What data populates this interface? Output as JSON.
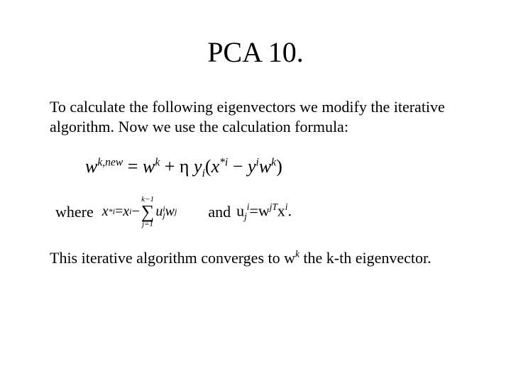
{
  "title": "PCA 10.",
  "intro": "To calculate the following eigenvectors we modify the iterative algorithm. Now we use the calculation formula:",
  "where_label": "where",
  "and_label": "and",
  "conclusion_pre": "This iterative algorithm converges to w",
  "conclusion_sup": "k",
  "conclusion_post": " the k-th eigenvector.",
  "eq_u_lhs_base": "u",
  "eq_u_lhs_sub": "j",
  "eq_u_lhs_sup": "i",
  "eq_u_eq": "=",
  "eq_u_rhs_w": "w",
  "eq_u_rhs_wsup": "jT",
  "eq_u_rhs_x": "x",
  "eq_u_rhs_xsup": "i",
  "eq_u_dot": ".",
  "font": {
    "title_size_pt": 40,
    "body_size_pt": 22,
    "formula_main_pt": 26,
    "formula_small_pt": 20
  },
  "colors": {
    "background": "#ffffff",
    "text": "#000000"
  },
  "main_formula": {
    "lhs": {
      "base": "w",
      "sup": "k,new"
    },
    "eq": "=",
    "terms": [
      {
        "base": "w",
        "sup": "k"
      },
      {
        "op": "+"
      },
      {
        "base": "η",
        "italic": false,
        "space_after": true
      },
      {
        "base": "y",
        "sub": "i"
      },
      {
        "paren_open": "("
      },
      {
        "base": "x",
        "sup": "*i"
      },
      {
        "op": "−"
      },
      {
        "base": "y",
        "sup": "i"
      },
      {
        "base": "w",
        "sup": "k"
      },
      {
        "paren_close": ")"
      }
    ]
  },
  "xstar_formula": {
    "lhs": {
      "base": "x",
      "sup": "*i"
    },
    "eq": "=",
    "rhs_first": {
      "base": "x",
      "sup": "i"
    },
    "minus": "−",
    "sum": {
      "top": "k−1",
      "bottom": "j=1"
    },
    "sum_terms": [
      {
        "base": "u",
        "sub": "j",
        "sup": "i"
      },
      {
        "base": "w",
        "sup": "j"
      }
    ]
  }
}
